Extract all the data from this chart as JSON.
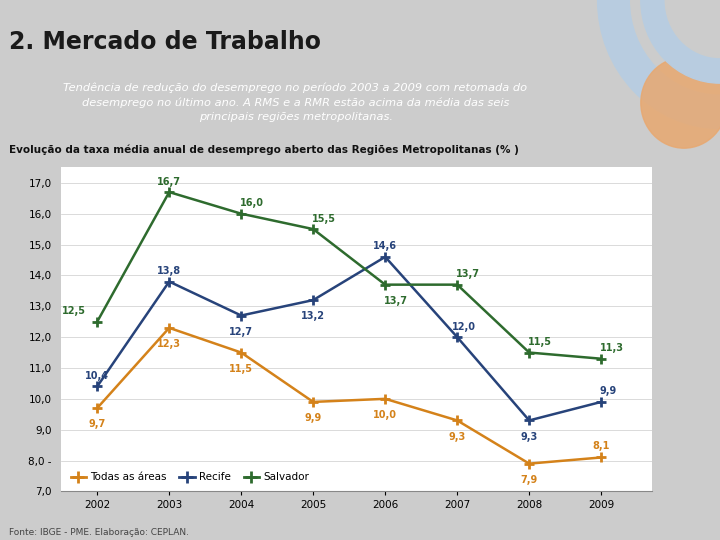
{
  "title": "2. Mercado de Trabalho",
  "subtitle": "Tendência de redução do desemprego no período 2003 a 2009 com retomada do\ndesemprego no último ano. A RMS e a RMR estão acima da média das seis\nprincipais regiões metropolitanas.",
  "chart_title": "Evolução da taxa média anual de desemprego aberto das Regiões Metropolitanas (% )",
  "years": [
    2002,
    2003,
    2004,
    2005,
    2006,
    2007,
    2008,
    2009
  ],
  "todas_areas": [
    9.7,
    12.3,
    11.5,
    9.9,
    10.0,
    9.3,
    7.9,
    8.1
  ],
  "recife": [
    10.4,
    13.8,
    12.7,
    13.2,
    14.6,
    12.0,
    9.3,
    9.9
  ],
  "salvador": [
    12.5,
    16.7,
    16.0,
    15.5,
    13.7,
    13.7,
    11.5,
    11.3
  ],
  "color_todas": "#D4821A",
  "color_recife": "#27437A",
  "color_salvador": "#2E6B2E",
  "ylim_min": 7.0,
  "ylim_max": 17.5,
  "fonte": "Fonte: IBGE - PME. Elaboração: CEPLAN.",
  "subtitle_box_color": "#6E7EB8",
  "subtitle_border_color": "#9AAAD0",
  "bg_color": "#CCCCCC"
}
